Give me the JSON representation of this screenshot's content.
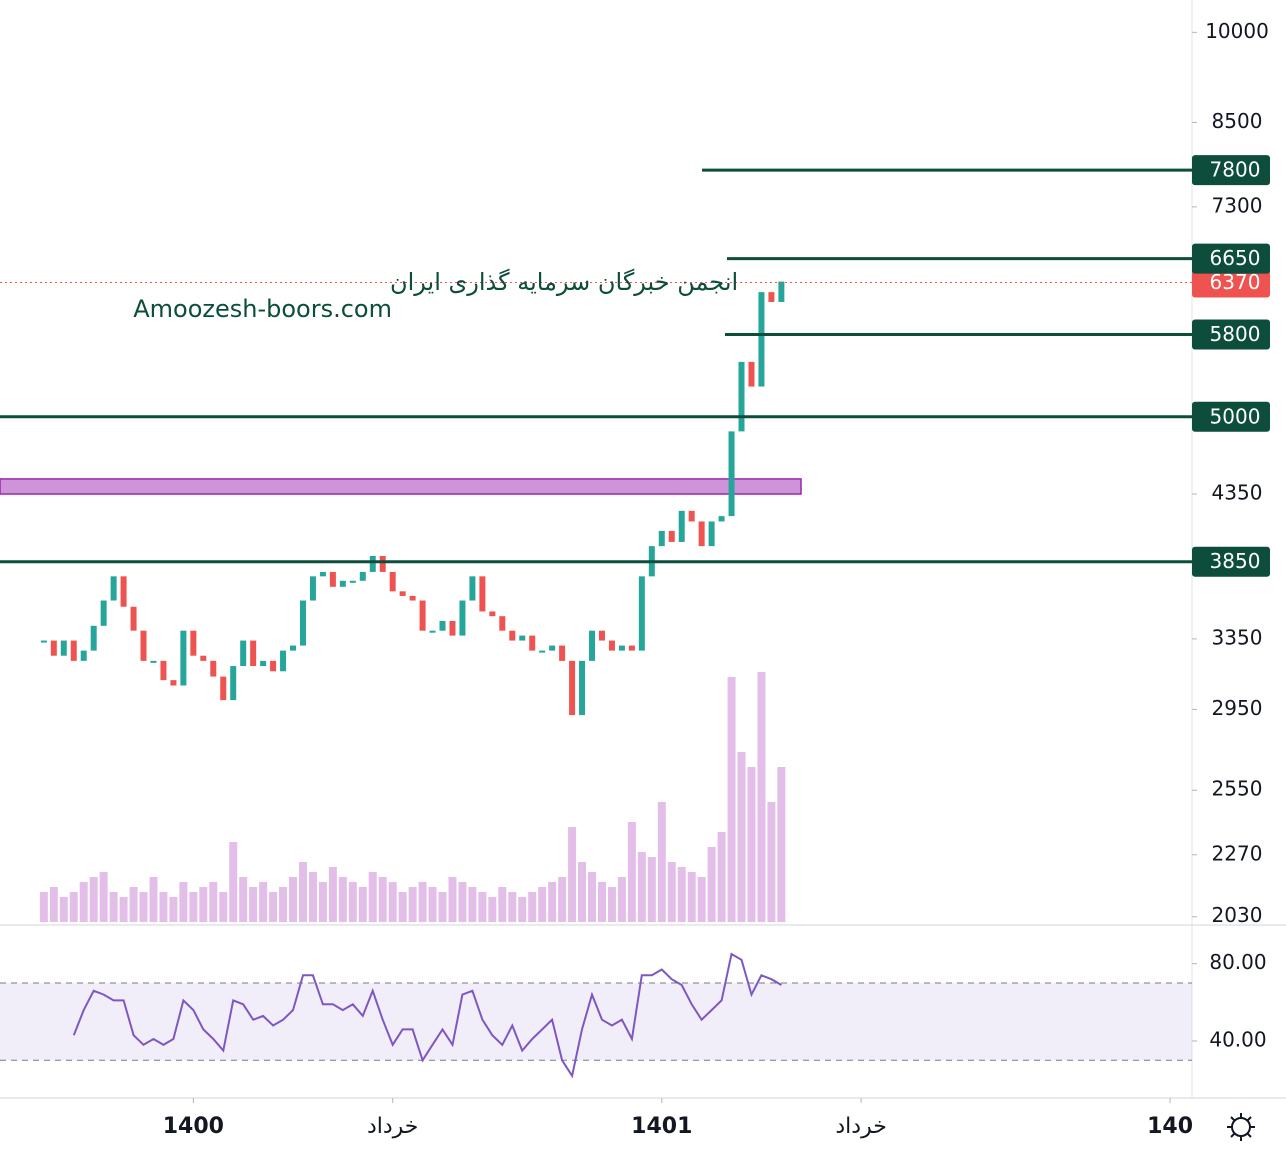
{
  "chart_data": [
    {
      "type": "candlestick",
      "watermark": [
        "انجمن خبرگان سرمایه گذاری ایران",
        "Amoozesh-boors.com"
      ],
      "values": [
        3340,
        3250,
        3340,
        3220,
        3280,
        3430,
        3590,
        3750,
        3550,
        3400,
        3220,
        3220,
        3110,
        3080,
        3400,
        3250,
        3220,
        3130,
        3000,
        3190,
        3340,
        3190,
        3220,
        3160,
        3280,
        3310,
        3590,
        3750,
        3780,
        3680,
        3720,
        3720,
        3780,
        3890,
        3780,
        3650,
        3620,
        3590,
        3400,
        3400,
        3460,
        3370,
        3590,
        3750,
        3520,
        3490,
        3400,
        3340,
        3370,
        3280,
        3280,
        3310,
        3220,
        2920,
        3220,
        3400,
        3340,
        3280,
        3310,
        3280,
        3750,
        3960,
        4070,
        3990,
        4220,
        4140,
        3960,
        4140,
        4180,
        4870,
        5520,
        5280,
        6260,
        6150,
        6380
      ],
      "up_color": "#26a69a",
      "down_color": "#ef5350",
      "xlim": [
        -4.4,
        115.2
      ],
      "xticks": [
        {
          "value": 15,
          "label": "1400"
        },
        {
          "value": 35,
          "label": "خرداد"
        },
        {
          "value": 62,
          "label": "1401"
        },
        {
          "value": 82,
          "label": "خرداد"
        },
        {
          "value": 113,
          "label": "140"
        }
      ],
      "yscale": "log",
      "ylim": [
        2000,
        10600
      ],
      "yticks": [
        10000,
        8500,
        7300,
        4350,
        3350,
        2950,
        2550,
        2270,
        2030
      ],
      "levels": [
        7800,
        6650,
        5800,
        5000,
        3850
      ],
      "level_color": "#0d4d3c",
      "zone": [
        4350,
        4470
      ],
      "zone_color": "#ce93d8",
      "last": 6370,
      "last_color": "#ef5350"
    },
    {
      "type": "bar",
      "color": "#ce93d8",
      "values": [
        30,
        35,
        25,
        30,
        40,
        45,
        50,
        30,
        25,
        35,
        30,
        45,
        30,
        25,
        40,
        30,
        35,
        40,
        30,
        80,
        45,
        35,
        40,
        30,
        35,
        45,
        60,
        50,
        40,
        55,
        45,
        40,
        35,
        50,
        45,
        40,
        30,
        35,
        40,
        35,
        30,
        45,
        40,
        35,
        30,
        25,
        35,
        30,
        25,
        30,
        35,
        40,
        45,
        95,
        60,
        50,
        40,
        35,
        45,
        100,
        70,
        65,
        120,
        60,
        55,
        50,
        45,
        75,
        90,
        245,
        170,
        155,
        250,
        120,
        155
      ]
    },
    {
      "type": "line",
      "color": "#7e57c2",
      "values": [
        null,
        null,
        null,
        43,
        56,
        66,
        64,
        61,
        61,
        43,
        38,
        41,
        38,
        41,
        61,
        56,
        46,
        41,
        35,
        61,
        59,
        51,
        53,
        48,
        51,
        56,
        74,
        74,
        59,
        59,
        56,
        59,
        53,
        66,
        51,
        38,
        46,
        46,
        30,
        38,
        46,
        38,
        64,
        66,
        51,
        43,
        38,
        48,
        35,
        41,
        46,
        51,
        30,
        22,
        46,
        64,
        51,
        48,
        51,
        41,
        74,
        74,
        77,
        72,
        69,
        59,
        51,
        56,
        61,
        85,
        82,
        64,
        74,
        72,
        69
      ],
      "ylim": [
        11,
        99
      ],
      "yticks": [
        {
          "value": 80,
          "label": "80.00"
        },
        {
          "value": 40,
          "label": "40.00"
        }
      ],
      "band": [
        30,
        70
      ]
    }
  ]
}
